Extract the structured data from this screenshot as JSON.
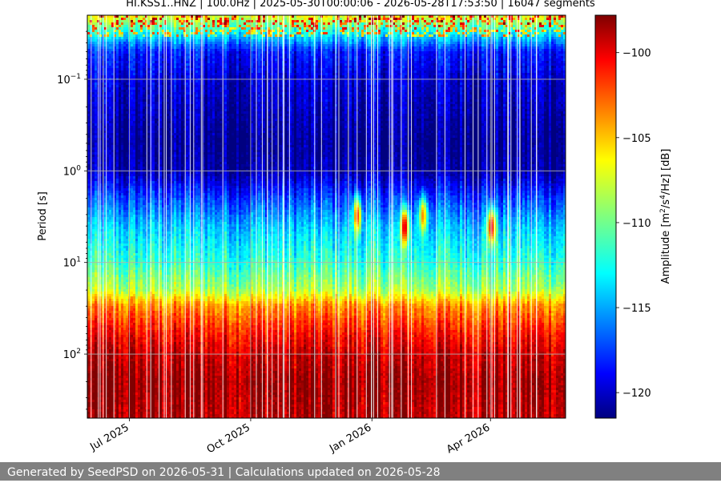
{
  "title": "HI.KSS1..HNZ | 100.0Hz | 2025-05-30T00:00:06 - 2026-05-28T17:53:50 | 16047 segments",
  "footer": "Generated by SeedPSD on 2026-05-31 | Calculations updated on 2026-05-28",
  "chart_data": {
    "type": "heatmap",
    "ylabel": "Period [s]",
    "yscale": "log",
    "yaxis_inverted": true,
    "ylim": [
      0.02,
      500
    ],
    "yticks": [
      {
        "value": 0.1,
        "base": "10",
        "exp": "−1"
      },
      {
        "value": 1,
        "base": "10",
        "exp": "0"
      },
      {
        "value": 10,
        "base": "10",
        "exp": "1"
      },
      {
        "value": 100,
        "base": "10",
        "exp": "2"
      }
    ],
    "xlim": [
      "2025-05-30",
      "2026-05-28"
    ],
    "xticks": [
      {
        "value": "2025-07-01",
        "label": "Jul 2025"
      },
      {
        "value": "2025-10-01",
        "label": "Oct 2025"
      },
      {
        "value": "2026-01-01",
        "label": "Jan 2026"
      },
      {
        "value": "2026-04-01",
        "label": "Apr 2026"
      }
    ],
    "grid": true,
    "colorbar": {
      "label": "Amplitude [m²/s⁴/Hz] [dB]",
      "colormap": "jet",
      "range": [
        -121.5,
        -97.8
      ],
      "ticks": [
        -100,
        -105,
        -110,
        -115,
        -120
      ],
      "tick_labels": [
        "−100",
        "−105",
        "−110",
        "−115",
        "−120"
      ]
    },
    "noise_profile": [
      {
        "period": 0.02,
        "db": -107
      },
      {
        "period": 0.03,
        "db": -112
      },
      {
        "period": 0.05,
        "db": -118
      },
      {
        "period": 0.1,
        "db": -119.5
      },
      {
        "period": 0.5,
        "db": -121
      },
      {
        "period": 1,
        "db": -120.5
      },
      {
        "period": 2,
        "db": -117
      },
      {
        "period": 4,
        "db": -114
      },
      {
        "period": 10,
        "db": -111.5
      },
      {
        "period": 20,
        "db": -108.5
      },
      {
        "period": 30,
        "db": -104
      },
      {
        "period": 60,
        "db": -101
      },
      {
        "period": 100,
        "db": -99.5
      },
      {
        "period": 200,
        "db": -98.5
      },
      {
        "period": 500,
        "db": -99
      }
    ],
    "events": [
      {
        "date": "2025-12-20",
        "period": 3,
        "db": -102
      },
      {
        "date": "2026-01-25",
        "period": 4,
        "db": -99.5
      },
      {
        "date": "2026-02-08",
        "period": 3,
        "db": -104
      },
      {
        "date": "2026-04-01",
        "period": 4,
        "db": -100
      }
    ]
  }
}
